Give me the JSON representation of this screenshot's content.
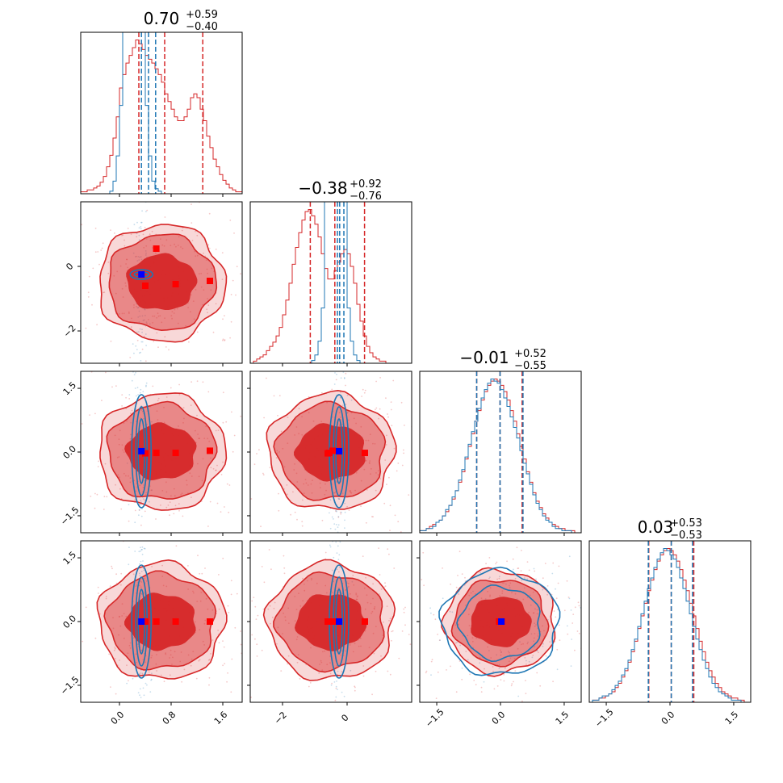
{
  "colors": {
    "red": "#d62728",
    "blue": "#1f77b4",
    "marker_red": "#ff0000",
    "marker_blue": "#0000ff"
  },
  "chart_data": {
    "type": "corner",
    "n_params": 4,
    "legend": "none",
    "grid": false,
    "titles": [
      {
        "value": "0.70",
        "plus": "+0.59",
        "minus": "−0.40"
      },
      {
        "value": "−0.38",
        "plus": "+0.92",
        "minus": "−0.76"
      },
      {
        "value": "−0.01",
        "plus": "+0.52",
        "minus": "−0.55"
      },
      {
        "value": "0.03",
        "plus": "+0.53",
        "minus": "−0.53"
      }
    ],
    "ranges": [
      [
        -0.6,
        1.9
      ],
      [
        -3.0,
        2.0
      ],
      [
        -1.9,
        1.9
      ],
      [
        -1.9,
        1.9
      ]
    ],
    "ticks": [
      {
        "values": [
          0.0,
          0.8,
          1.6
        ],
        "labels": [
          "0.0",
          "0.8",
          "1.6"
        ]
      },
      {
        "values": [
          -2,
          0
        ],
        "labels": [
          "−2",
          "0"
        ]
      },
      {
        "values": [
          -1.5,
          0.0,
          1.5
        ],
        "labels": [
          "−1.5",
          "0.0",
          "1.5"
        ]
      },
      {
        "values": [
          -1.5,
          0.0,
          1.5
        ],
        "labels": [
          "−1.5",
          "0.0",
          "1.5"
        ]
      }
    ],
    "quantiles_red": [
      [
        0.3,
        0.7,
        1.29
      ],
      [
        -1.14,
        -0.38,
        0.54
      ],
      [
        -0.56,
        -0.01,
        0.51
      ],
      [
        -0.5,
        0.03,
        0.56
      ]
    ],
    "quantiles_blue": [
      [
        0.34,
        0.45,
        0.56
      ],
      [
        -0.3,
        -0.23,
        -0.1
      ],
      [
        -0.56,
        -0.01,
        0.53
      ],
      [
        -0.51,
        0.03,
        0.53
      ]
    ],
    "red_modes": {
      "p0": [
        0.4,
        0.57,
        0.87,
        1.4
      ],
      "p1": [
        -0.6,
        0.55,
        -0.55,
        -0.45
      ],
      "p2": [
        -0.03,
        -0.02,
        -0.02,
        0.03
      ],
      "p3": [
        0.0,
        0.0,
        0.0,
        0.0
      ]
    },
    "blue_truth": [
      0.34,
      -0.25,
      0.02,
      0.0
    ],
    "hist1d": [
      {
        "bins": 50,
        "red": [
          1,
          1,
          2,
          2,
          3,
          4,
          6,
          9,
          14,
          20,
          29,
          40,
          55,
          62,
          68,
          72,
          76,
          80,
          78,
          75,
          72,
          70,
          68,
          65,
          62,
          58,
          52,
          48,
          44,
          40,
          38,
          38,
          40,
          44,
          50,
          52,
          50,
          44,
          38,
          30,
          24,
          18,
          14,
          10,
          7,
          5,
          3,
          2,
          1,
          1
        ],
        "blue": [
          0,
          0,
          0,
          0,
          0,
          0,
          0,
          0,
          0,
          1,
          5,
          15,
          35,
          70,
          100,
          130,
          180,
          130,
          100,
          70,
          35,
          15,
          5,
          2,
          1,
          0,
          0,
          0,
          0,
          0,
          0,
          0,
          0,
          0,
          0,
          0,
          0,
          0,
          0,
          0,
          0,
          0,
          0,
          0,
          0,
          0,
          0,
          0,
          0,
          0
        ]
      },
      {
        "bins": 50,
        "red": [
          0,
          1,
          2,
          3,
          4,
          6,
          8,
          10,
          13,
          17,
          23,
          30,
          38,
          47,
          55,
          62,
          68,
          72,
          73,
          70,
          66,
          60,
          52,
          45,
          40,
          40,
          44,
          48,
          52,
          54,
          52,
          46,
          38,
          28,
          20,
          13,
          8,
          5,
          3,
          2,
          1,
          1,
          0,
          0,
          0,
          0,
          0,
          0,
          0,
          0
        ],
        "blue": [
          0,
          0,
          0,
          0,
          0,
          0,
          0,
          0,
          0,
          0,
          0,
          0,
          0,
          0,
          0,
          0,
          0,
          0,
          0,
          1,
          3,
          8,
          20,
          60,
          150,
          300,
          420,
          300,
          150,
          60,
          20,
          8,
          3,
          1,
          0,
          0,
          0,
          0,
          0,
          0,
          0,
          0,
          0,
          0,
          0,
          0,
          0,
          0,
          0,
          0
        ]
      },
      {
        "bins": 50,
        "red": [
          1,
          1,
          2,
          3,
          4,
          5,
          6,
          8,
          10,
          13,
          16,
          20,
          24,
          29,
          35,
          41,
          47,
          53,
          58,
          63,
          67,
          70,
          72,
          73,
          72,
          70,
          67,
          63,
          58,
          53,
          47,
          41,
          35,
          29,
          24,
          19,
          15,
          12,
          9,
          7,
          5,
          4,
          3,
          2,
          2,
          1,
          1,
          1,
          0,
          0
        ],
        "blue": [
          1,
          1,
          2,
          2,
          3,
          5,
          6,
          8,
          11,
          13,
          17,
          20,
          25,
          30,
          36,
          42,
          48,
          53,
          59,
          64,
          68,
          71,
          73,
          72,
          71,
          68,
          64,
          60,
          55,
          50,
          45,
          39,
          33,
          28,
          23,
          18,
          14,
          11,
          8,
          6,
          5,
          3,
          2,
          2,
          1,
          1,
          1,
          0,
          0,
          0
        ]
      },
      {
        "bins": 50,
        "red": [
          0,
          1,
          1,
          2,
          2,
          3,
          4,
          5,
          7,
          9,
          12,
          15,
          19,
          24,
          29,
          35,
          41,
          47,
          53,
          58,
          63,
          67,
          70,
          72,
          73,
          72,
          70,
          67,
          63,
          58,
          53,
          47,
          41,
          35,
          29,
          24,
          19,
          15,
          12,
          9,
          7,
          5,
          4,
          3,
          2,
          2,
          1,
          1,
          0,
          0
        ],
        "blue": [
          0,
          1,
          1,
          2,
          3,
          3,
          4,
          6,
          8,
          10,
          13,
          16,
          20,
          25,
          30,
          36,
          42,
          48,
          54,
          59,
          64,
          68,
          71,
          73,
          72,
          70,
          68,
          64,
          59,
          54,
          48,
          42,
          36,
          30,
          25,
          20,
          16,
          12,
          9,
          7,
          5,
          4,
          3,
          2,
          1,
          1,
          1,
          0,
          0,
          0
        ]
      }
    ]
  }
}
